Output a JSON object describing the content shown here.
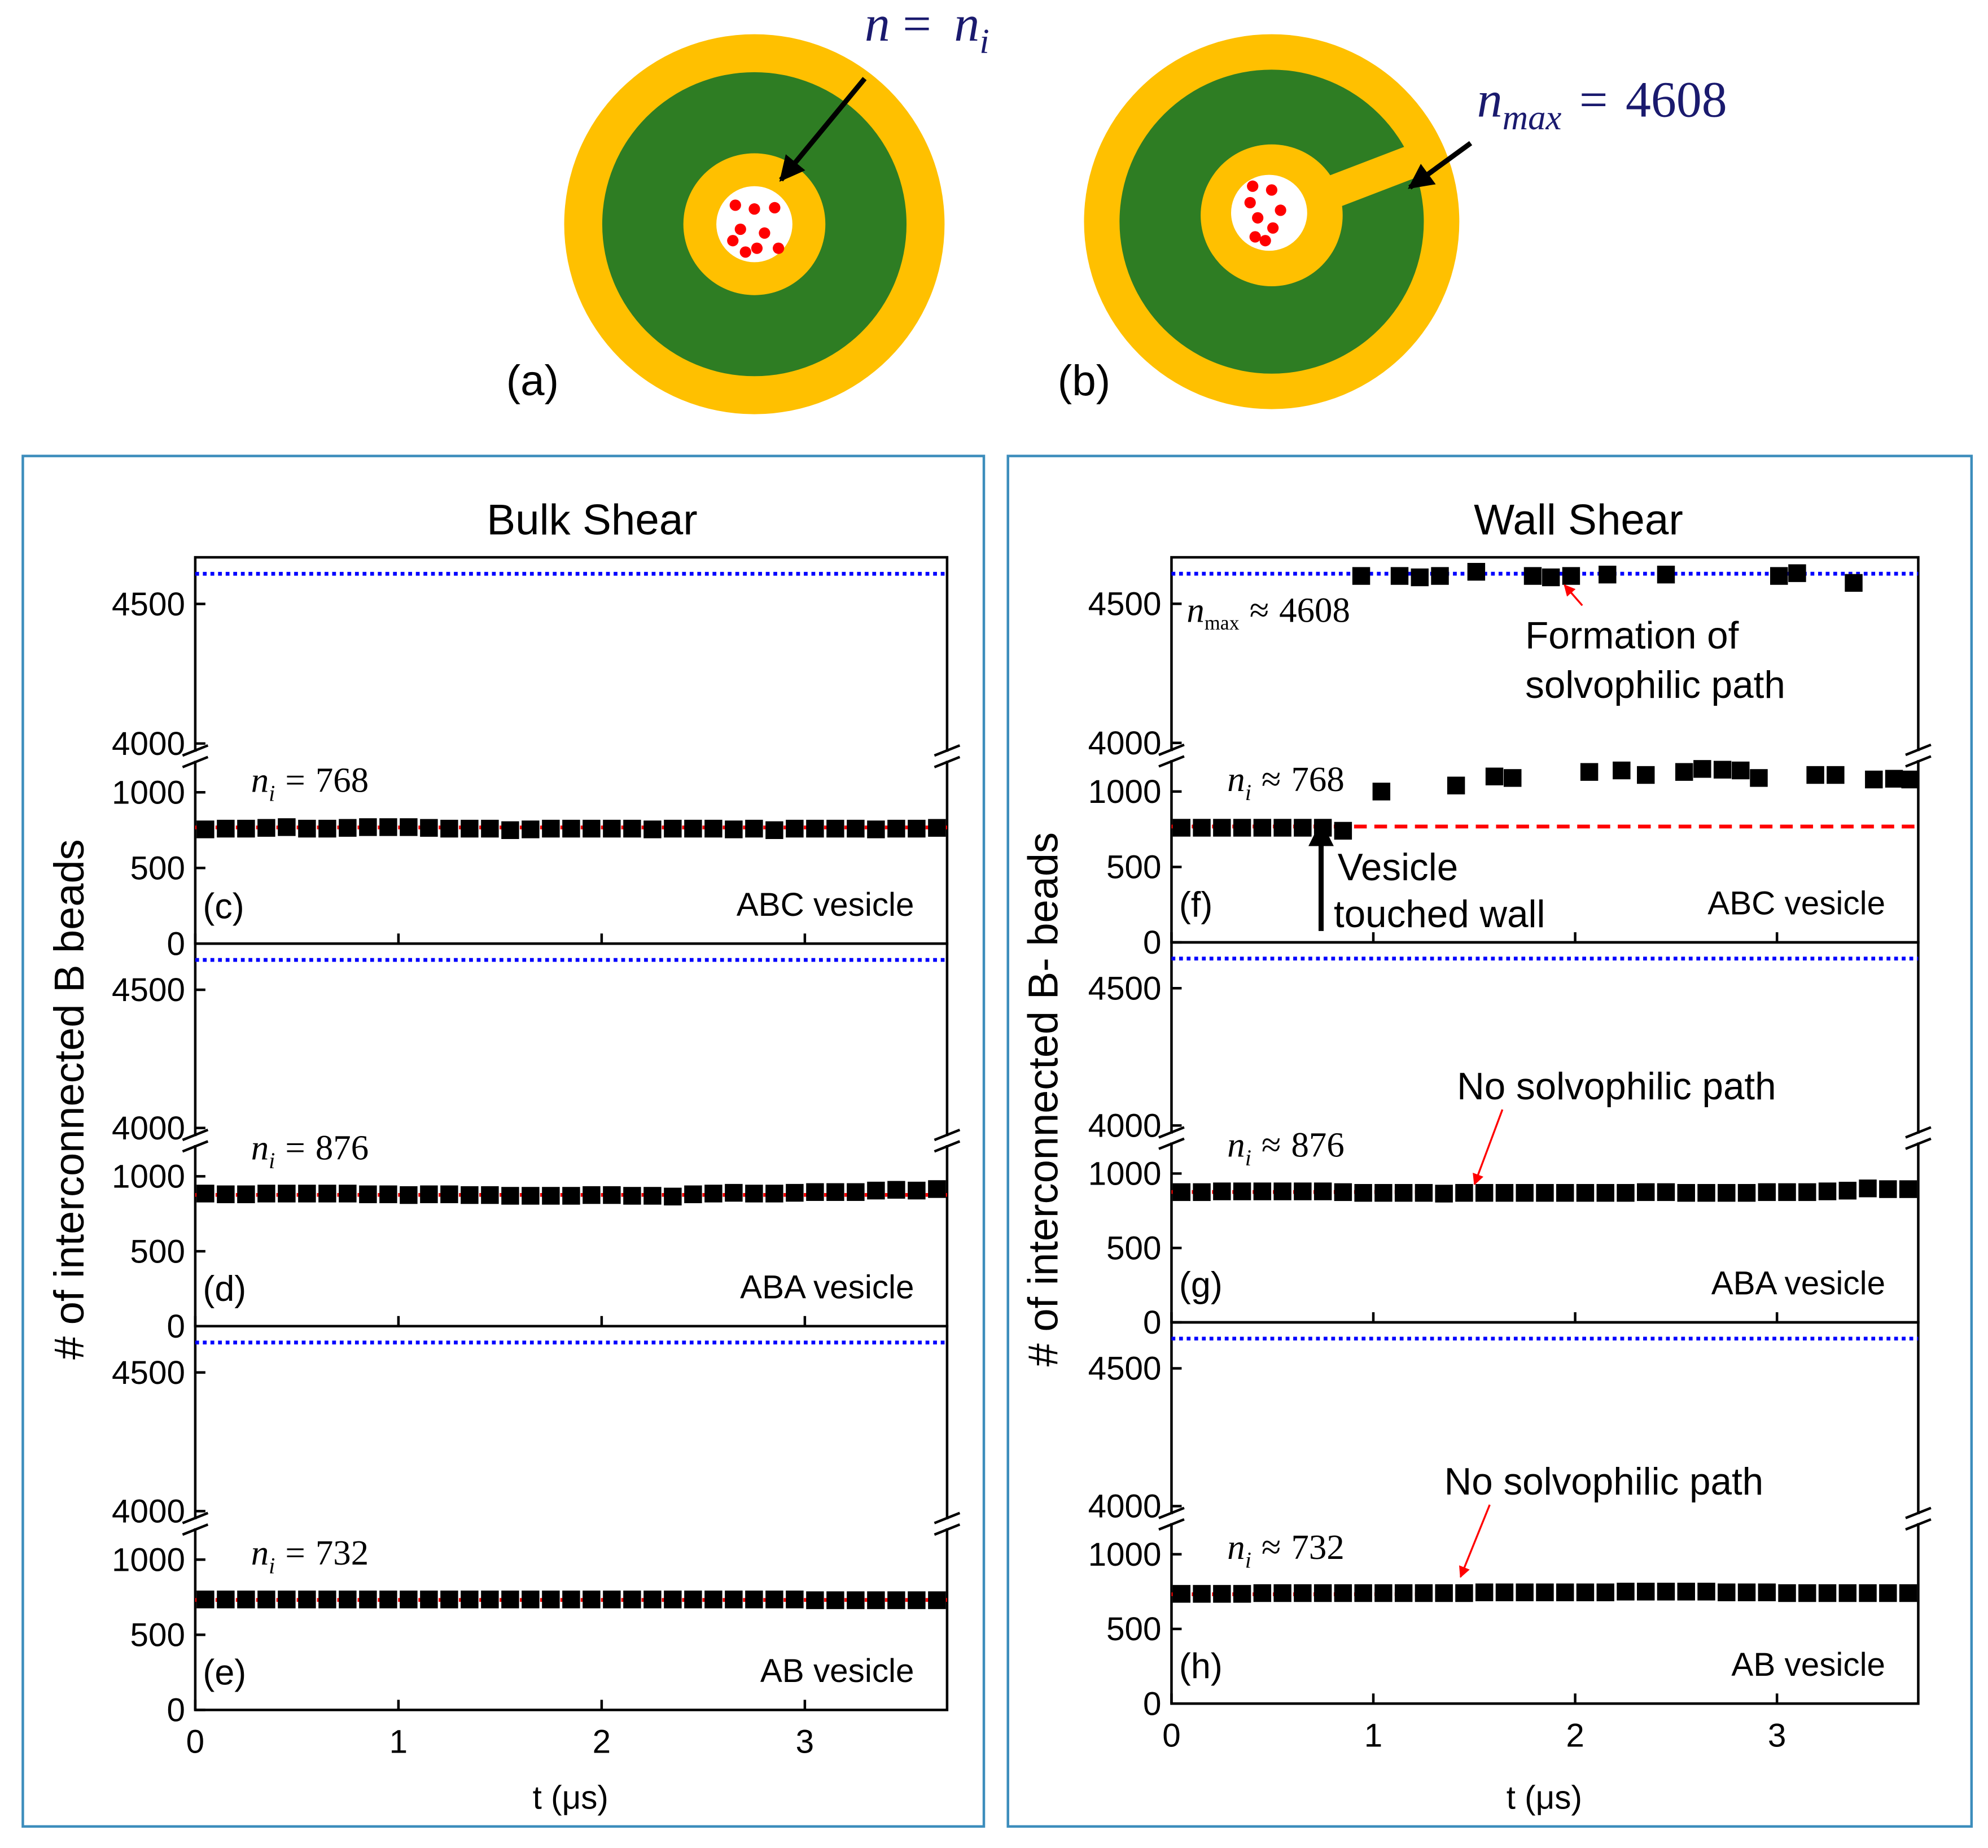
{
  "diagrams": [
    {
      "label": "(a)",
      "lhs": "n",
      "relation": "=",
      "rhs": "n",
      "rhs_sub": "i"
    },
    {
      "label": "(b)",
      "lhs": "n",
      "lhs_sub": "max",
      "relation": "=",
      "rhs": "4608"
    }
  ],
  "groups": [
    {
      "title": "Bulk Shear",
      "ylabel": "# of interconnected B beads",
      "xlabel": "t (μs)"
    },
    {
      "title": "Wall Shear",
      "ylabel": "# of interconnected B- beads",
      "xlabel": "t (μs)"
    }
  ],
  "chart_data": [
    {
      "type": "scatter",
      "panel": "(c)",
      "label": "ABC vesicle",
      "color": "#000000",
      "x": [
        0.05,
        0.15,
        0.25,
        0.35,
        0.45,
        0.55,
        0.65,
        0.75,
        0.85,
        0.95,
        1.05,
        1.15,
        1.25,
        1.35,
        1.45,
        1.55,
        1.65,
        1.75,
        1.85,
        1.95,
        2.05,
        2.15,
        2.25,
        2.35,
        2.45,
        2.55,
        2.65,
        2.75,
        2.85,
        2.95,
        3.05,
        3.15,
        3.25,
        3.35,
        3.45,
        3.55,
        3.65
      ],
      "values": [
        755,
        760,
        760,
        765,
        770,
        760,
        760,
        765,
        770,
        770,
        770,
        765,
        760,
        760,
        760,
        750,
        755,
        760,
        760,
        760,
        760,
        760,
        755,
        760,
        760,
        760,
        755,
        760,
        750,
        760,
        760,
        760,
        760,
        755,
        760,
        760,
        765
      ],
      "xlim": [
        0,
        3.7
      ],
      "xticks": [
        0,
        1,
        2,
        3
      ],
      "show_xticklabels": false,
      "ylim": [
        0,
        4667
      ],
      "ybreak": [
        1200,
        3975
      ],
      "yticks": [
        0,
        500,
        1000,
        4000,
        4500
      ],
      "ni": 768,
      "ni_symbol": "n",
      "ni_subscript": "i",
      "ni_relation": "=",
      "ni_color": "#ff0000",
      "nmax": 4608,
      "nmax_color": "#0000ff"
    },
    {
      "type": "scatter",
      "panel": "(d)",
      "label": "ABA vesicle",
      "color": "#000000",
      "x": [
        0.05,
        0.15,
        0.25,
        0.35,
        0.45,
        0.55,
        0.65,
        0.75,
        0.85,
        0.95,
        1.05,
        1.15,
        1.25,
        1.35,
        1.45,
        1.55,
        1.65,
        1.75,
        1.85,
        1.95,
        2.05,
        2.15,
        2.25,
        2.35,
        2.45,
        2.55,
        2.65,
        2.75,
        2.85,
        2.95,
        3.05,
        3.15,
        3.25,
        3.35,
        3.45,
        3.55,
        3.65
      ],
      "values": [
        885,
        880,
        880,
        885,
        885,
        885,
        885,
        885,
        880,
        880,
        875,
        880,
        880,
        875,
        875,
        870,
        870,
        870,
        870,
        875,
        875,
        870,
        870,
        865,
        880,
        885,
        890,
        885,
        885,
        890,
        895,
        895,
        895,
        905,
        910,
        905,
        915
      ],
      "xlim": [
        0,
        3.7
      ],
      "xticks": [
        0,
        1,
        2,
        3
      ],
      "show_xticklabels": false,
      "ylim": [
        0,
        4667
      ],
      "ybreak": [
        1200,
        3975
      ],
      "yticks": [
        0,
        500,
        1000,
        4000,
        4500
      ],
      "ni": 876,
      "ni_symbol": "n",
      "ni_subscript": "i",
      "ni_relation": "=",
      "ni_color": "#ff0000",
      "nmax": 4608,
      "nmax_color": "#0000ff"
    },
    {
      "type": "scatter",
      "panel": "(e)",
      "label": "AB vesicle",
      "color": "#000000",
      "x": [
        0.05,
        0.15,
        0.25,
        0.35,
        0.45,
        0.55,
        0.65,
        0.75,
        0.85,
        0.95,
        1.05,
        1.15,
        1.25,
        1.35,
        1.45,
        1.55,
        1.65,
        1.75,
        1.85,
        1.95,
        2.05,
        2.15,
        2.25,
        2.35,
        2.45,
        2.55,
        2.65,
        2.75,
        2.85,
        2.95,
        3.05,
        3.15,
        3.25,
        3.35,
        3.45,
        3.55,
        3.65
      ],
      "values": [
        735,
        735,
        735,
        735,
        735,
        735,
        735,
        735,
        735,
        735,
        735,
        735,
        735,
        735,
        735,
        735,
        735,
        735,
        735,
        735,
        735,
        735,
        735,
        735,
        735,
        735,
        735,
        735,
        735,
        735,
        730,
        730,
        730,
        730,
        730,
        730,
        730
      ],
      "xlim": [
        0,
        3.7
      ],
      "xticks": [
        0,
        1,
        2,
        3
      ],
      "show_xticklabels": true,
      "ylim": [
        0,
        4667
      ],
      "ybreak": [
        1200,
        3975
      ],
      "yticks": [
        0,
        500,
        1000,
        4000,
        4500
      ],
      "ni": 732,
      "ni_symbol": "n",
      "ni_subscript": "i",
      "ni_relation": "=",
      "ni_color": "#ff0000",
      "nmax": 4608,
      "nmax_color": "#0000ff"
    },
    {
      "type": "scatter",
      "panel": "(f)",
      "label": "ABC vesicle",
      "color": "#000000",
      "x": [
        0.05,
        0.15,
        0.25,
        0.35,
        0.45,
        0.55,
        0.65,
        0.75,
        0.85,
        0.94,
        1.13,
        1.23,
        1.33,
        1.51,
        1.79,
        1.88,
        1.98,
        2.16,
        2.45,
        3.01,
        3.1,
        3.38,
        1.04,
        1.41,
        1.6,
        1.69,
        2.07,
        2.23,
        2.35,
        2.54,
        2.63,
        2.73,
        2.82,
        2.91,
        3.19,
        3.29,
        3.48,
        3.58,
        3.66
      ],
      "values": [
        760,
        760,
        760,
        760,
        760,
        760,
        760,
        760,
        740,
        4600,
        4600,
        4595,
        4600,
        4615,
        4600,
        4595,
        4600,
        4605,
        4605,
        4600,
        4610,
        4575,
        1000,
        1040,
        1100,
        1090,
        1130,
        1140,
        1110,
        1130,
        1150,
        1145,
        1140,
        1090,
        1110,
        1110,
        1080,
        1085,
        1080
      ],
      "xlim": [
        0,
        3.7
      ],
      "xticks": [
        0,
        1,
        2,
        3
      ],
      "show_xticklabels": false,
      "ylim": [
        0,
        4667
      ],
      "ybreak": [
        1200,
        3975
      ],
      "yticks": [
        0,
        500,
        1000,
        4000,
        4500
      ],
      "ni": 768,
      "ni_symbol": "n",
      "ni_subscript": "i",
      "ni_relation": "≈",
      "ni_color": "#ff0000",
      "nmax": 4608,
      "nmax_color": "#0000ff",
      "nmax_symbol": "n",
      "nmax_subscript": "max",
      "nmax_relation": "≈",
      "annotations": [
        "Vesicle",
        "touched wall",
        "Formation of",
        "solvophilic path"
      ]
    },
    {
      "type": "scatter",
      "panel": "(g)",
      "label": "ABA vesicle",
      "color": "#000000",
      "x": [
        0.05,
        0.15,
        0.25,
        0.35,
        0.45,
        0.55,
        0.65,
        0.75,
        0.85,
        0.95,
        1.05,
        1.15,
        1.25,
        1.35,
        1.45,
        1.55,
        1.65,
        1.75,
        1.85,
        1.95,
        2.05,
        2.15,
        2.25,
        2.35,
        2.45,
        2.55,
        2.65,
        2.75,
        2.85,
        2.95,
        3.05,
        3.15,
        3.25,
        3.35,
        3.45,
        3.55,
        3.65
      ],
      "values": [
        875,
        875,
        880,
        880,
        880,
        880,
        880,
        880,
        875,
        870,
        870,
        870,
        870,
        865,
        870,
        870,
        870,
        870,
        870,
        870,
        870,
        870,
        870,
        875,
        875,
        870,
        870,
        870,
        870,
        875,
        875,
        875,
        880,
        885,
        900,
        895,
        895
      ],
      "xlim": [
        0,
        3.7
      ],
      "xticks": [
        0,
        1,
        2,
        3
      ],
      "show_xticklabels": false,
      "ylim": [
        0,
        4667
      ],
      "ybreak": [
        1200,
        3975
      ],
      "yticks": [
        0,
        500,
        1000,
        4000,
        4500
      ],
      "ni": 876,
      "ni_symbol": "n",
      "ni_subscript": "i",
      "ni_relation": "≈",
      "ni_color": "#ff0000",
      "nmax": 4608,
      "nmax_color": "#0000ff",
      "annotations": [
        "No solvophilic path"
      ]
    },
    {
      "type": "scatter",
      "panel": "(h)",
      "label": "AB vesicle",
      "color": "#000000",
      "x": [
        0.05,
        0.15,
        0.25,
        0.35,
        0.45,
        0.55,
        0.65,
        0.75,
        0.85,
        0.95,
        1.05,
        1.15,
        1.25,
        1.35,
        1.45,
        1.55,
        1.65,
        1.75,
        1.85,
        1.95,
        2.05,
        2.15,
        2.25,
        2.35,
        2.45,
        2.55,
        2.65,
        2.75,
        2.85,
        2.95,
        3.05,
        3.15,
        3.25,
        3.35,
        3.45,
        3.55,
        3.65
      ],
      "values": [
        735,
        735,
        735,
        735,
        740,
        740,
        740,
        740,
        740,
        740,
        740,
        740,
        740,
        740,
        740,
        745,
        745,
        745,
        745,
        745,
        745,
        745,
        750,
        750,
        750,
        750,
        750,
        745,
        745,
        745,
        740,
        740,
        740,
        740,
        740,
        740,
        740
      ],
      "xlim": [
        0,
        3.7
      ],
      "xticks": [
        0,
        1,
        2,
        3
      ],
      "show_xticklabels": true,
      "ylim": [
        0,
        4667
      ],
      "ybreak": [
        1200,
        3975
      ],
      "yticks": [
        0,
        500,
        1000,
        4000,
        4500
      ],
      "ni": 732,
      "ni_symbol": "n",
      "ni_subscript": "i",
      "ni_relation": "≈",
      "ni_color": "#ff0000",
      "nmax": 4608,
      "nmax_color": "#0000ff",
      "annotations": [
        "No solvophilic path"
      ]
    }
  ]
}
